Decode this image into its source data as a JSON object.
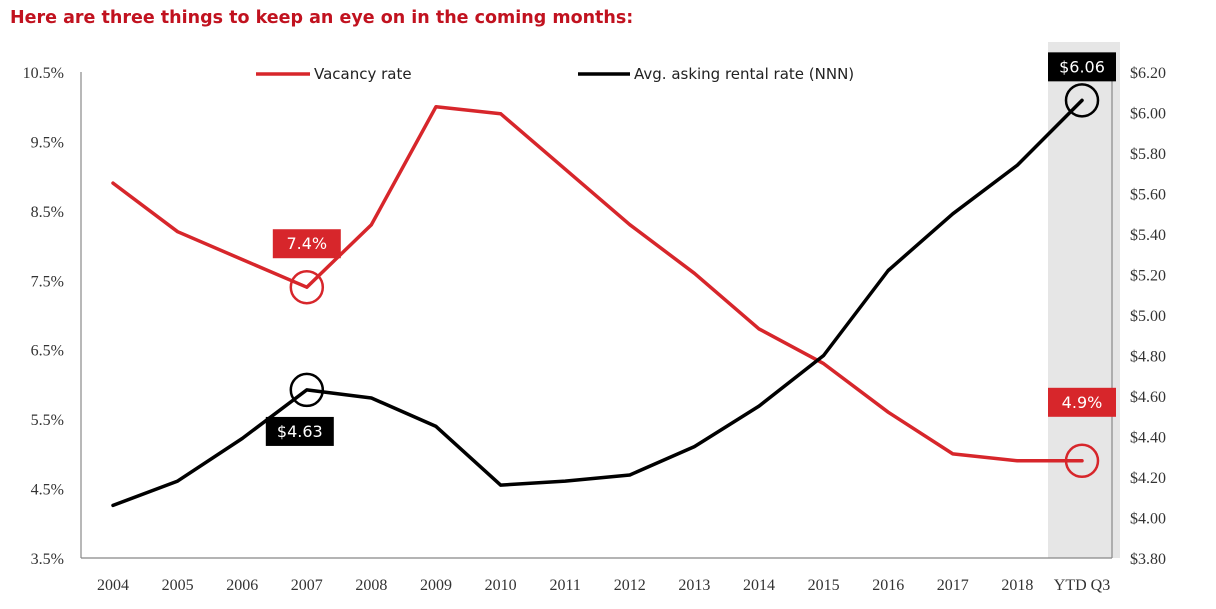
{
  "heading": "Here are three things to keep an eye on in the coming months:",
  "colors": {
    "vacancy": "#d7262b",
    "rent": "#000000",
    "highlight_band": "#e6e6e6",
    "heading": "#c1121f"
  },
  "chart_data": {
    "type": "line",
    "categories": [
      "2004",
      "2005",
      "2006",
      "2007",
      "2008",
      "2009",
      "2010",
      "2011",
      "2012",
      "2013",
      "2014",
      "2015",
      "2016",
      "2017",
      "2018",
      "YTD Q3"
    ],
    "highlight_category": "YTD Q3",
    "legend_position": "top",
    "grid": false,
    "y_left": {
      "ylim": [
        3.5,
        10.5
      ],
      "tick_labels": [
        "10.5%",
        "9.5%",
        "8.5%",
        "7.5%",
        "6.5%",
        "5.5%",
        "4.5%",
        "3.5%"
      ]
    },
    "y_right": {
      "ylim": [
        3.8,
        6.2
      ],
      "tick_labels": [
        "$6.20",
        "$6.00",
        "$5.80",
        "$5.60",
        "$5.40",
        "$5.20",
        "$5.00",
        "$4.80",
        "$4.60",
        "$4.40",
        "$4.20",
        "$4.00",
        "$3.80"
      ]
    },
    "series": [
      {
        "name": "Vacancy rate",
        "axis": "left",
        "color": "#d7262b",
        "values": [
          8.9,
          8.2,
          7.8,
          7.4,
          8.3,
          10.0,
          9.9,
          9.1,
          8.3,
          7.6,
          6.8,
          6.3,
          5.6,
          5.0,
          4.9,
          4.9
        ]
      },
      {
        "name": "Avg. asking rental rate (NNN)",
        "axis": "right",
        "color": "#000000",
        "values": [
          4.06,
          4.18,
          4.39,
          4.63,
          4.59,
          4.45,
          4.16,
          4.18,
          4.21,
          4.35,
          4.55,
          4.8,
          5.22,
          5.5,
          5.74,
          6.06
        ]
      }
    ],
    "annotations": [
      {
        "series": 0,
        "index": 3,
        "label": "7.4%",
        "placement": "above"
      },
      {
        "series": 0,
        "index": 15,
        "label": "4.9%",
        "placement": "above"
      },
      {
        "series": 1,
        "index": 3,
        "label": "$4.63",
        "placement": "below"
      },
      {
        "series": 1,
        "index": 15,
        "label": "$6.06",
        "placement": "above"
      }
    ]
  }
}
